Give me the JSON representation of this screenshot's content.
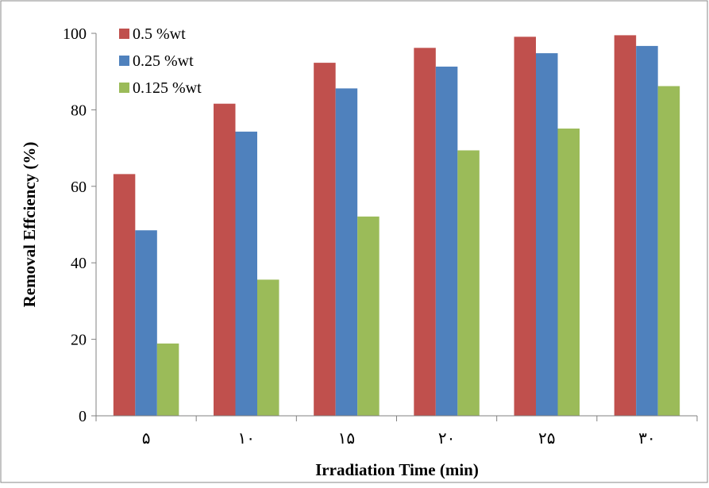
{
  "chart_data": {
    "type": "bar",
    "title": "",
    "xlabel": "Irradiation Time (min)",
    "ylabel": "Removal Effciency (%)",
    "categories": [
      "۵",
      "۱۰",
      "۱۵",
      "۲۰",
      "۲۵",
      "۳۰"
    ],
    "ylim": [
      0,
      100
    ],
    "yticks": [
      0,
      20,
      40,
      60,
      80,
      100
    ],
    "grid": false,
    "legend_position": "top-left",
    "series": [
      {
        "name": "0.5 %wt",
        "color": "#c0504d",
        "values": [
          63.2,
          81.6,
          92.3,
          96.2,
          99.1,
          99.5
        ]
      },
      {
        "name": "0.25 %wt",
        "color": "#4f81bd",
        "values": [
          48.5,
          74.3,
          85.6,
          91.3,
          94.8,
          96.7
        ]
      },
      {
        "name": "0.125 %wt",
        "color": "#9bbb59",
        "values": [
          18.9,
          35.6,
          52.1,
          69.4,
          75.1,
          86.2
        ]
      }
    ]
  }
}
